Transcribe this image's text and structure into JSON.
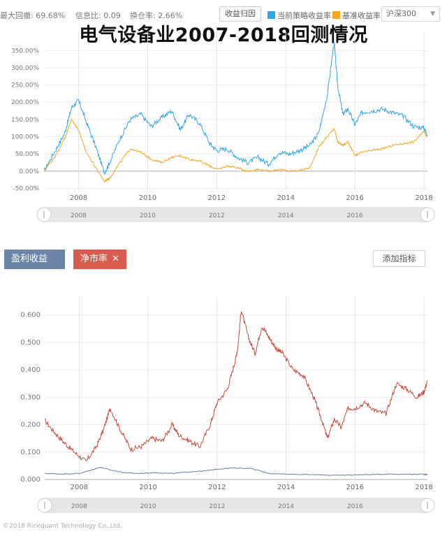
{
  "toolbar": {
    "max_drawdown": "最大回撤: 69.68%",
    "info_ratio": "信息比: 0.09",
    "turnover": "换仓率: 2.66%",
    "attribution_button": "收益归因",
    "legend_strategy": "当前策略收益率",
    "legend_benchmark": "基准收益率",
    "benchmark_select": "沪深300",
    "select_caret": "▼"
  },
  "overlay_title": "电气设备业2007-2018回测情况",
  "colors": {
    "strategy": "#31a5e6",
    "benchmark": "#f5a623",
    "pe_earnings": "#6b7ca3",
    "pb": "#c74a3c"
  },
  "indicator_tags": [
    {
      "label": "盈利收益",
      "close": "✕",
      "color": "#6b84a7"
    },
    {
      "label": "净市率",
      "close": "✕",
      "color": "#d65c4e"
    }
  ],
  "add_indicator_button": "添加指标",
  "footer_text": "©2018 Ricequant Technology Co.,Ltd.",
  "chart_data": [
    {
      "type": "line",
      "title": "",
      "x_ticks": [
        "2008",
        "2010",
        "2012",
        "2014",
        "2016",
        "2018"
      ],
      "y_ticks": [
        "-50.00%",
        "0.00%",
        "50.00%",
        "100.00%",
        "150.00%",
        "200.00%",
        "250.00%",
        "300.00%",
        "350.00%"
      ],
      "ylim": [
        -55,
        385
      ],
      "xlim": [
        2007.0,
        2018.1
      ],
      "navigator_labels": [
        "2008",
        "2010",
        "2012",
        "2014",
        "2016"
      ],
      "series": [
        {
          "name": "当前策略收益率",
          "x": [
            2007.0,
            2007.3,
            2007.6,
            2007.8,
            2008.0,
            2008.2,
            2008.5,
            2008.75,
            2008.9,
            2009.2,
            2009.5,
            2009.8,
            2010.1,
            2010.4,
            2010.7,
            2010.95,
            2011.2,
            2011.5,
            2011.8,
            2012.0,
            2012.3,
            2012.6,
            2012.9,
            2013.2,
            2013.5,
            2013.8,
            2014.1,
            2014.4,
            2014.7,
            2014.95,
            2015.2,
            2015.4,
            2015.5,
            2015.65,
            2015.8,
            2016.0,
            2016.2,
            2016.5,
            2016.8,
            2017.1,
            2017.4,
            2017.7,
            2018.0,
            2018.1
          ],
          "y": [
            0,
            55,
            110,
            185,
            205,
            150,
            70,
            -5,
            25,
            95,
            150,
            165,
            130,
            155,
            175,
            120,
            165,
            140,
            80,
            60,
            65,
            40,
            25,
            40,
            20,
            55,
            50,
            60,
            75,
            110,
            220,
            375,
            250,
            165,
            180,
            135,
            170,
            175,
            180,
            170,
            160,
            130,
            125,
            105
          ]
        },
        {
          "name": "基准收益率",
          "x": [
            2007.0,
            2007.3,
            2007.6,
            2007.8,
            2008.0,
            2008.2,
            2008.5,
            2008.75,
            2008.9,
            2009.2,
            2009.5,
            2009.8,
            2010.1,
            2010.4,
            2010.7,
            2010.95,
            2011.2,
            2011.5,
            2011.8,
            2012.0,
            2012.3,
            2012.6,
            2012.9,
            2013.2,
            2013.5,
            2013.8,
            2014.1,
            2014.4,
            2014.7,
            2014.95,
            2015.2,
            2015.4,
            2015.5,
            2015.65,
            2015.8,
            2016.0,
            2016.2,
            2016.5,
            2016.8,
            2017.1,
            2017.4,
            2017.7,
            2018.0,
            2018.1
          ],
          "y": [
            0,
            40,
            95,
            150,
            120,
            60,
            10,
            -30,
            -20,
            25,
            65,
            55,
            35,
            25,
            40,
            45,
            35,
            30,
            15,
            5,
            15,
            10,
            0,
            5,
            0,
            5,
            0,
            2,
            10,
            70,
            100,
            125,
            85,
            75,
            85,
            45,
            55,
            60,
            65,
            75,
            80,
            85,
            115,
            100
          ]
        }
      ]
    },
    {
      "type": "line",
      "title": "",
      "x_ticks": [
        "2008",
        "2010",
        "2012",
        "2014",
        "2016",
        "2018"
      ],
      "y_ticks": [
        "0.000",
        "0.100",
        "0.200",
        "0.300",
        "0.400",
        "0.500",
        "0.600"
      ],
      "ylim": [
        0,
        0.64
      ],
      "xlim": [
        2007.0,
        2018.1
      ],
      "navigator_labels": [
        "2008",
        "2010",
        "2012",
        "2014",
        "2016"
      ],
      "series": [
        {
          "name": "净市率",
          "x": [
            2007.0,
            2007.3,
            2007.6,
            2007.9,
            2008.2,
            2008.5,
            2008.7,
            2008.9,
            2009.2,
            2009.5,
            2009.8,
            2010.1,
            2010.4,
            2010.7,
            2010.9,
            2011.2,
            2011.5,
            2011.8,
            2012.0,
            2012.3,
            2012.5,
            2012.6,
            2012.7,
            2012.9,
            2013.1,
            2013.3,
            2013.5,
            2013.7,
            2013.9,
            2014.2,
            2014.5,
            2014.8,
            2015.0,
            2015.2,
            2015.4,
            2015.6,
            2015.8,
            2016.0,
            2016.3,
            2016.6,
            2016.9,
            2017.2,
            2017.5,
            2017.8,
            2018.0,
            2018.1
          ],
          "y": [
            0.215,
            0.17,
            0.13,
            0.095,
            0.065,
            0.12,
            0.18,
            0.26,
            0.18,
            0.11,
            0.12,
            0.15,
            0.14,
            0.2,
            0.16,
            0.14,
            0.12,
            0.2,
            0.28,
            0.33,
            0.42,
            0.48,
            0.62,
            0.52,
            0.46,
            0.56,
            0.52,
            0.48,
            0.46,
            0.4,
            0.38,
            0.3,
            0.23,
            0.15,
            0.22,
            0.19,
            0.26,
            0.26,
            0.28,
            0.25,
            0.24,
            0.35,
            0.33,
            0.3,
            0.32,
            0.36
          ]
        },
        {
          "name": "盈利收益",
          "x": [
            2007.0,
            2007.5,
            2008.0,
            2008.3,
            2008.6,
            2008.9,
            2009.3,
            2009.7,
            2010.2,
            2010.7,
            2011.2,
            2011.7,
            2012.0,
            2012.5,
            2013.0,
            2013.5,
            2014.0,
            2014.5,
            2015.0,
            2015.5,
            2016.0,
            2016.5,
            2017.0,
            2017.5,
            2018.0,
            2018.1
          ],
          "y": [
            0.022,
            0.02,
            0.022,
            0.032,
            0.045,
            0.035,
            0.025,
            0.022,
            0.025,
            0.022,
            0.028,
            0.032,
            0.038,
            0.042,
            0.04,
            0.022,
            0.02,
            0.018,
            0.017,
            0.015,
            0.017,
            0.018,
            0.02,
            0.019,
            0.019,
            0.018
          ]
        }
      ]
    }
  ]
}
